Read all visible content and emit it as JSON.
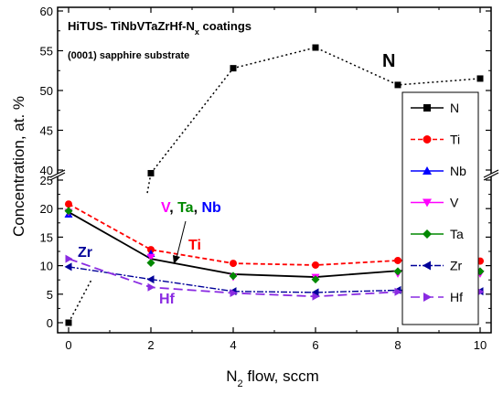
{
  "chart_data": {
    "type": "line",
    "title_prefix": "HiTUS- TiNbVTaZrHf-N",
    "title_sub": "x",
    "title_suffix": " coatings",
    "subtitle": "(0001) sapphire substrate",
    "xlabel_prefix": "N",
    "xlabel_sub": "2",
    "xlabel_suffix": " flow, sccm",
    "ylabel": "Concentration, at. %",
    "x_ticks": [
      "0",
      "2",
      "4",
      "6",
      "8",
      "10"
    ],
    "y_ticks_lower": [
      "0",
      "5",
      "10",
      "15",
      "20",
      "25"
    ],
    "y_ticks_upper": [
      "40",
      "45",
      "50",
      "55",
      "60"
    ],
    "xlim": [
      0,
      10
    ],
    "ylim_lower": [
      0,
      25
    ],
    "ylim_upper": [
      38,
      60
    ],
    "axis_break": "between 25 and 38",
    "legend_position": "right",
    "x": [
      0,
      2,
      4,
      6,
      8,
      10
    ],
    "series": [
      {
        "name": "N",
        "color": "#000000",
        "marker": "square",
        "dash": "",
        "lower": [
          0,
          null,
          null,
          null,
          null,
          null
        ],
        "upper": [
          null,
          39.6,
          52.8,
          55.4,
          50.7,
          51.5
        ]
      },
      {
        "name": "Ti",
        "color": "#ff0000",
        "marker": "circle",
        "dash": "5,3",
        "lower": [
          20.8,
          12.8,
          10.4,
          10.1,
          10.9,
          10.8
        ]
      },
      {
        "name": "Nb",
        "color": "#0000ff",
        "marker": "triangle-up",
        "dash": "",
        "lower": [
          19.0,
          12.1,
          null,
          null,
          null,
          null
        ]
      },
      {
        "name": "V",
        "color": "#ff00ff",
        "marker": "triangle-down",
        "dash": "",
        "lower": [
          19.4,
          11.5,
          8.0,
          8.0,
          8.6,
          8.6
        ]
      },
      {
        "name": "Ta",
        "color": "#008800",
        "marker": "diamond",
        "dash": "",
        "lower": [
          19.6,
          10.5,
          8.2,
          7.6,
          9.0,
          9.0
        ]
      },
      {
        "name": "Zr",
        "color": "#000099",
        "marker": "triangle-left",
        "dash": "6,3",
        "lower": [
          9.8,
          7.6,
          5.5,
          5.3,
          5.7,
          5.5
        ]
      },
      {
        "name": "Hf",
        "color": "#8a2be2",
        "marker": "triangle-right",
        "dash": "10,5",
        "lower": [
          11.2,
          6.2,
          5.2,
          4.6,
          5.4,
          5.4
        ]
      }
    ],
    "avg_line": {
      "color": "#000000",
      "values": [
        19.4,
        11.2,
        8.5,
        8.0,
        9.1,
        9.3
      ]
    },
    "annotations": {
      "N": {
        "text": "N",
        "color": "#000000"
      },
      "V": {
        "text": "V",
        "color": "#ff00ff"
      },
      "comma1": {
        "text": ", ",
        "color": "#000000"
      },
      "Ta": {
        "text": "Ta",
        "color": "#008800"
      },
      "comma2": {
        "text": ", ",
        "color": "#000000"
      },
      "Nb": {
        "text": "Nb",
        "color": "#0000ff"
      },
      "Ti": {
        "text": "Ti",
        "color": "#ff0000"
      },
      "Zr": {
        "text": "Zr",
        "color": "#000099"
      },
      "Hf": {
        "text": "Hf",
        "color": "#8a2be2"
      }
    }
  }
}
